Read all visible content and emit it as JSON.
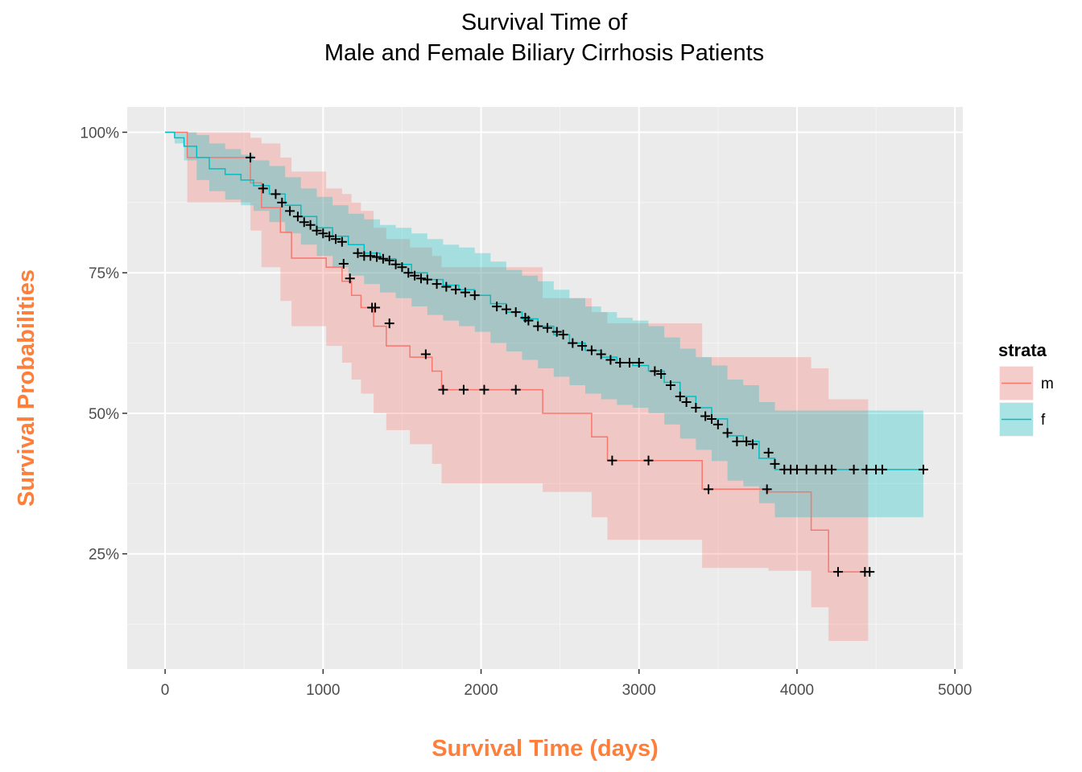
{
  "title_line1": "Survival Time of",
  "title_line2": "Male and Female Biliary Cirrhosis Patients",
  "chart_data": {
    "type": "line",
    "title": "Survival Time of Male and Female Biliary Cirrhosis Patients",
    "xlabel": "Survival Time (days)",
    "ylabel": "Survival Probabilities",
    "xlim": [
      -240,
      5050
    ],
    "ylim": [
      0.045,
      1.045
    ],
    "x_ticks": [
      0,
      1000,
      2000,
      3000,
      4000,
      5000
    ],
    "x_tick_labels": [
      "0",
      "1000",
      "2000",
      "3000",
      "4000",
      "5000"
    ],
    "y_ticks": [
      0.25,
      0.5,
      0.75,
      1.0
    ],
    "y_tick_labels": [
      "25%",
      "50%",
      "75%",
      "100%"
    ],
    "grid": true,
    "background": "#ebebeb",
    "legend": {
      "title": "strata",
      "position": "right"
    },
    "series": [
      {
        "name": "m",
        "color": "#f8766d",
        "step_x": [
          0,
          140,
          540,
          610,
          730,
          800,
          1020,
          1120,
          1180,
          1240,
          1320,
          1400,
          1550,
          1690,
          1750,
          2390,
          2700,
          2800,
          3400,
          3820,
          4090,
          4200,
          4450
        ],
        "step_y": [
          1.0,
          0.955,
          0.91,
          0.866,
          0.822,
          0.776,
          0.76,
          0.735,
          0.71,
          0.688,
          0.655,
          0.62,
          0.6,
          0.575,
          0.542,
          0.5,
          0.458,
          0.416,
          0.365,
          0.36,
          0.292,
          0.218,
          0.218
        ],
        "upper": [
          1.0,
          1.0,
          0.99,
          0.98,
          0.955,
          0.93,
          0.9,
          0.89,
          0.875,
          0.86,
          0.83,
          0.81,
          0.795,
          0.78,
          0.76,
          0.705,
          0.68,
          0.66,
          0.6,
          0.6,
          0.58,
          0.525,
          0.525
        ],
        "lower": [
          1.0,
          0.875,
          0.825,
          0.76,
          0.7,
          0.655,
          0.62,
          0.59,
          0.56,
          0.535,
          0.5,
          0.47,
          0.445,
          0.41,
          0.375,
          0.36,
          0.315,
          0.275,
          0.225,
          0.22,
          0.155,
          0.095,
          0.095
        ],
        "censor_x": [
          540,
          1130,
          1170,
          1310,
          1330,
          1420,
          1650,
          1760,
          1890,
          2020,
          2220,
          2830,
          3060,
          3440,
          3810,
          4260,
          4430,
          4460
        ],
        "censor_y": [
          0.955,
          0.766,
          0.74,
          0.688,
          0.688,
          0.66,
          0.605,
          0.542,
          0.542,
          0.542,
          0.542,
          0.416,
          0.416,
          0.365,
          0.365,
          0.218,
          0.218,
          0.218
        ]
      },
      {
        "name": "f",
        "color": "#00bfc4",
        "step_x": [
          0,
          60,
          120,
          200,
          280,
          380,
          480,
          560,
          660,
          760,
          860,
          960,
          1060,
          1160,
          1260,
          1360,
          1460,
          1560,
          1660,
          1760,
          1860,
          1960,
          2060,
          2160,
          2260,
          2360,
          2460,
          2560,
          2660,
          2760,
          2860,
          2960,
          3060,
          3160,
          3260,
          3360,
          3460,
          3560,
          3660,
          3760,
          3860,
          3960,
          4060,
          4160,
          4260,
          4360,
          4460,
          4560,
          4660,
          4800
        ],
        "step_y": [
          1.0,
          0.99,
          0.975,
          0.955,
          0.935,
          0.925,
          0.915,
          0.905,
          0.89,
          0.87,
          0.85,
          0.83,
          0.815,
          0.8,
          0.785,
          0.775,
          0.765,
          0.75,
          0.738,
          0.728,
          0.72,
          0.71,
          0.695,
          0.68,
          0.668,
          0.655,
          0.64,
          0.625,
          0.612,
          0.6,
          0.59,
          0.585,
          0.575,
          0.555,
          0.53,
          0.51,
          0.49,
          0.46,
          0.45,
          0.42,
          0.4,
          0.4,
          0.4,
          0.4,
          0.4,
          0.4,
          0.4,
          0.4,
          0.4,
          0.4
        ],
        "upper": [
          1.0,
          1.0,
          1.0,
          0.995,
          0.98,
          0.97,
          0.96,
          0.95,
          0.94,
          0.92,
          0.9,
          0.885,
          0.87,
          0.855,
          0.845,
          0.835,
          0.83,
          0.82,
          0.81,
          0.8,
          0.795,
          0.785,
          0.77,
          0.755,
          0.745,
          0.735,
          0.72,
          0.705,
          0.69,
          0.68,
          0.67,
          0.665,
          0.655,
          0.635,
          0.615,
          0.6,
          0.585,
          0.56,
          0.55,
          0.52,
          0.505,
          0.505,
          0.505,
          0.505,
          0.505,
          0.505,
          0.505,
          0.505,
          0.505,
          0.505
        ],
        "lower": [
          1.0,
          0.98,
          0.95,
          0.915,
          0.895,
          0.88,
          0.87,
          0.86,
          0.84,
          0.82,
          0.8,
          0.78,
          0.76,
          0.745,
          0.73,
          0.715,
          0.705,
          0.69,
          0.675,
          0.665,
          0.655,
          0.645,
          0.625,
          0.61,
          0.595,
          0.58,
          0.565,
          0.55,
          0.535,
          0.525,
          0.515,
          0.51,
          0.5,
          0.48,
          0.455,
          0.435,
          0.415,
          0.38,
          0.37,
          0.34,
          0.315,
          0.315,
          0.315,
          0.315,
          0.315,
          0.315,
          0.315,
          0.315,
          0.315,
          0.315
        ],
        "censor_x": [
          620,
          700,
          740,
          790,
          840,
          880,
          920,
          960,
          1000,
          1040,
          1080,
          1120,
          1220,
          1260,
          1300,
          1340,
          1380,
          1420,
          1460,
          1500,
          1540,
          1580,
          1620,
          1660,
          1720,
          1780,
          1840,
          1900,
          1960,
          2100,
          2160,
          2220,
          2280,
          2300,
          2360,
          2420,
          2480,
          2520,
          2580,
          2640,
          2700,
          2760,
          2820,
          2880,
          2940,
          3000,
          3100,
          3140,
          3200,
          3260,
          3300,
          3360,
          3420,
          3460,
          3500,
          3560,
          3620,
          3680,
          3720,
          3820,
          3860,
          3920,
          3960,
          4000,
          4060,
          4120,
          4180,
          4220,
          4360,
          4440,
          4500,
          4540,
          4800
        ],
        "censor_y": [
          0.9,
          0.89,
          0.875,
          0.86,
          0.85,
          0.84,
          0.835,
          0.825,
          0.82,
          0.815,
          0.81,
          0.805,
          0.785,
          0.78,
          0.78,
          0.778,
          0.775,
          0.772,
          0.765,
          0.76,
          0.75,
          0.745,
          0.74,
          0.738,
          0.73,
          0.725,
          0.72,
          0.715,
          0.71,
          0.69,
          0.685,
          0.68,
          0.67,
          0.665,
          0.655,
          0.652,
          0.645,
          0.64,
          0.625,
          0.62,
          0.612,
          0.605,
          0.595,
          0.59,
          0.59,
          0.59,
          0.575,
          0.57,
          0.55,
          0.53,
          0.52,
          0.51,
          0.495,
          0.49,
          0.48,
          0.465,
          0.45,
          0.45,
          0.445,
          0.43,
          0.41,
          0.4,
          0.4,
          0.4,
          0.4,
          0.4,
          0.4,
          0.4,
          0.4,
          0.4,
          0.4,
          0.4,
          0.4
        ]
      }
    ]
  }
}
